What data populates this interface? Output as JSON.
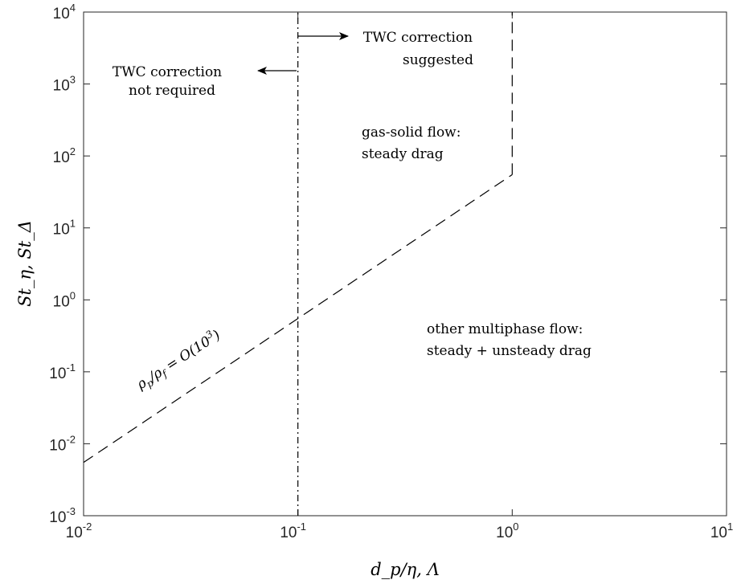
{
  "chart_data": {
    "type": "line",
    "title": "",
    "xlabel": "d_p/η, Λ",
    "ylabel": "St_η, St_Δ",
    "xscale": "log",
    "yscale": "log",
    "xlim": [
      0.01,
      10
    ],
    "ylim": [
      0.001,
      10000
    ],
    "grid": false,
    "x_ticks": [
      {
        "base": "10",
        "exp": "-2",
        "value": 0.01
      },
      {
        "base": "10",
        "exp": "-1",
        "value": 0.1
      },
      {
        "base": "10",
        "exp": "0",
        "value": 1
      },
      {
        "base": "10",
        "exp": "1",
        "value": 10
      }
    ],
    "y_ticks": [
      {
        "base": "10",
        "exp": "-3",
        "value": 0.001
      },
      {
        "base": "10",
        "exp": "-2",
        "value": 0.01
      },
      {
        "base": "10",
        "exp": "-1",
        "value": 0.1
      },
      {
        "base": "10",
        "exp": "0",
        "value": 1
      },
      {
        "base": "10",
        "exp": "1",
        "value": 10
      },
      {
        "base": "10",
        "exp": "2",
        "value": 100
      },
      {
        "base": "10",
        "exp": "3",
        "value": 1000
      },
      {
        "base": "10",
        "exp": "4",
        "value": 10000
      }
    ],
    "series": [
      {
        "style": "dashed",
        "x": [
          0.01,
          1
        ],
        "y": [
          0.0055,
          55
        ]
      },
      {
        "style": "dashed",
        "x": [
          1,
          1
        ],
        "y": [
          55,
          10000
        ]
      },
      {
        "style": "dashdot",
        "x": [
          0.1,
          0.1
        ],
        "y": [
          0.001,
          10000
        ]
      }
    ],
    "annotations": {
      "slope_label": {
        "rho_p": "ρ",
        "p": "p",
        "rho_f": "ρ",
        "f": "f",
        "eq": " = O(10",
        "exp": "3",
        "close": ")"
      },
      "not_required": [
        "TWC correction",
        "not required"
      ],
      "suggested": [
        "TWC correction",
        "suggested"
      ],
      "gas_solid": [
        "gas-solid flow:",
        "steady drag"
      ],
      "other": [
        "other multiphase flow:",
        "steady + unsteady drag"
      ]
    }
  }
}
